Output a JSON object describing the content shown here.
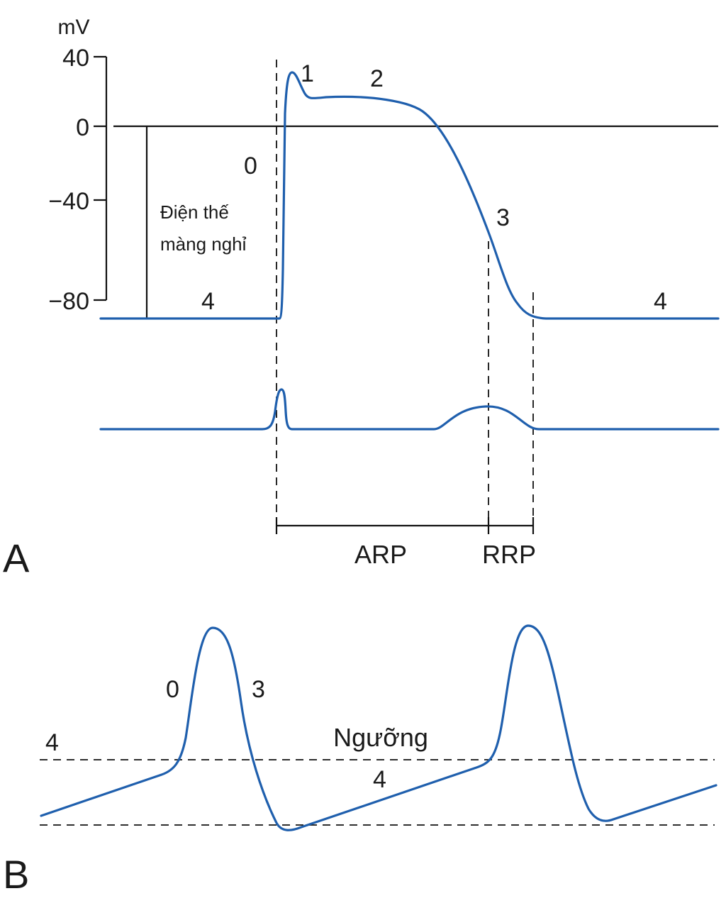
{
  "panel_a": {
    "label": "A",
    "y_unit": "mV",
    "y_ticks": [
      "40",
      "0",
      "−40",
      "−80"
    ],
    "resting_label_line1": "Điện thế",
    "resting_label_line2": "màng nghỉ",
    "phase_labels": {
      "phase0": "0",
      "phase1": "1",
      "phase2": "2",
      "phase3": "3",
      "phase4_left": "4",
      "phase4_right": "4"
    },
    "arp_label": "ARP",
    "rrp_label": "RRP",
    "trace_color": "#1f5fad"
  },
  "panel_b": {
    "label": "B",
    "threshold_label": "Ngưỡng",
    "phase_labels": {
      "phase0": "0",
      "phase3": "3",
      "phase4_left": "4",
      "phase4_mid": "4"
    }
  }
}
